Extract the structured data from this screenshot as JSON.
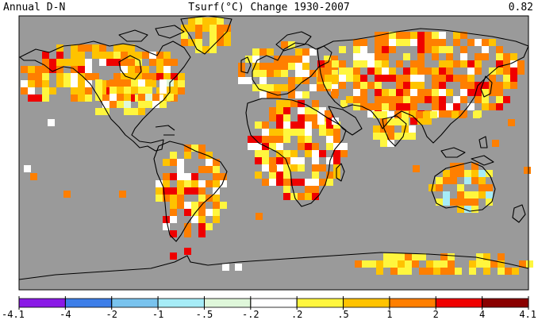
{
  "header": {
    "left": "Annual D-N",
    "center": "Tsurf(°C) Change 1930-2007",
    "right": "0.82"
  },
  "legend": {
    "bins": [
      {
        "color": "#8a1ae6"
      },
      {
        "color": "#3d7ee8"
      },
      {
        "color": "#79c3ee"
      },
      {
        "color": "#a6ecf7"
      },
      {
        "color": "#dff7da"
      },
      {
        "color": "#ffffff"
      },
      {
        "color": "#fff63e"
      },
      {
        "color": "#ffc300"
      },
      {
        "color": "#ff7f00"
      },
      {
        "color": "#ef0000"
      },
      {
        "color": "#8a0000"
      }
    ],
    "labels": [
      "-4.1",
      "-4",
      "-2",
      "-1",
      "-.5",
      "-.2",
      ".2",
      ".5",
      "1",
      "2",
      "4",
      "4.1"
    ]
  },
  "colors": {
    "no_data": "#9a9a9a",
    "coastline": "#000000"
  }
}
